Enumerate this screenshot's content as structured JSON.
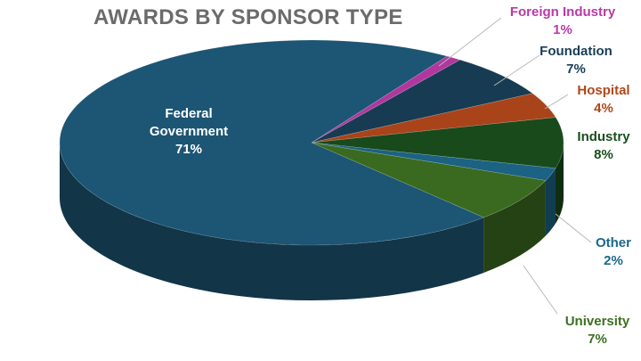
{
  "chart_data": {
    "type": "pie",
    "title": "AWARDS BY SPONSOR TYPE",
    "categories": [
      "Federal Government",
      "Foreign Industry",
      "Foundation",
      "Hospital",
      "Industry",
      "Other",
      "University"
    ],
    "values": [
      71,
      1,
      7,
      4,
      8,
      2,
      7
    ],
    "value_labels": [
      "71%",
      "1%",
      "7%",
      "4%",
      "8%",
      "2%",
      "7%"
    ],
    "colors": [
      "#1d5574",
      "#b1379f",
      "#173b52",
      "#a9441a",
      "#184a1c",
      "#1b6283",
      "#3a6a1f"
    ]
  }
}
